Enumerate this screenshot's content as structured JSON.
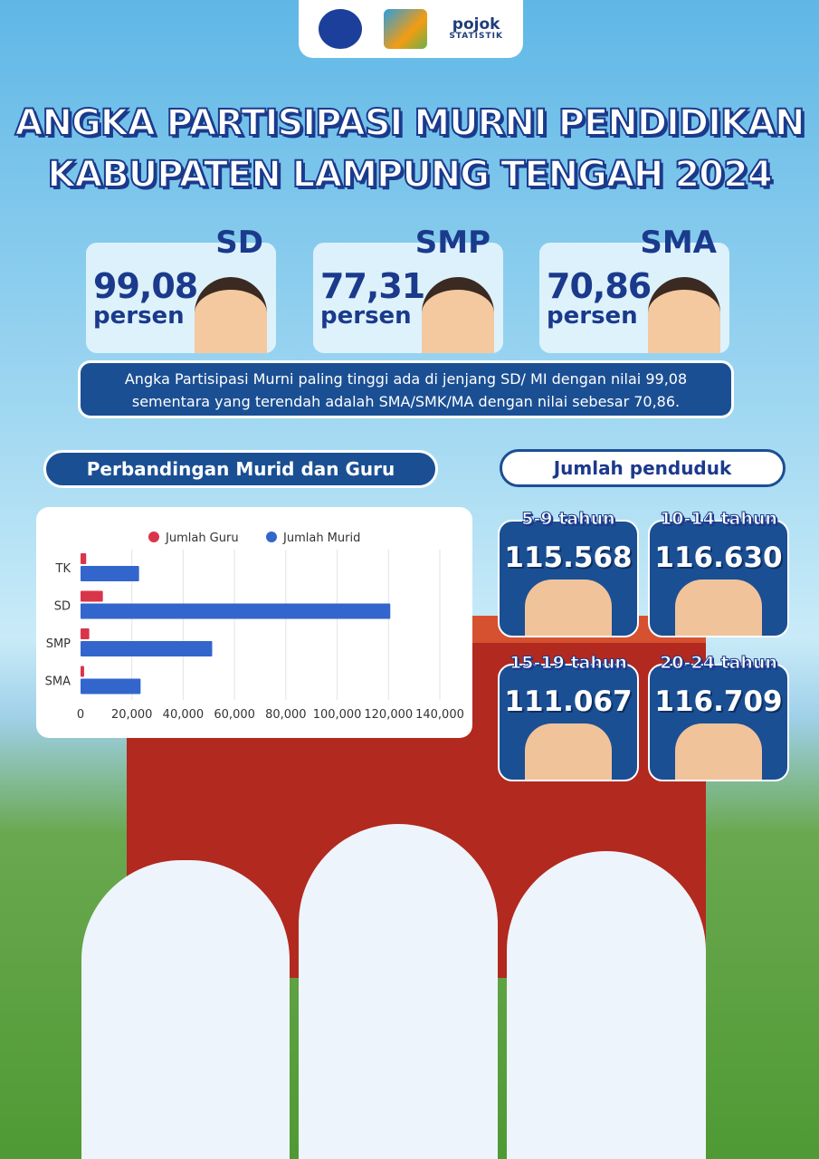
{
  "header": {
    "title_line1": "ANGKA PARTISIPASI MURNI PENDIDIKAN",
    "title_line2": "KABUPATEN LAMPUNG TENGAH 2024",
    "logos": {
      "pojok": "pojok",
      "statistik": "STATISTIK"
    }
  },
  "kpis": [
    {
      "level": "SD",
      "value": "99,08",
      "unit": "persen"
    },
    {
      "level": "SMP",
      "value": "77,31",
      "unit": "persen"
    },
    {
      "level": "SMA",
      "value": "70,86",
      "unit": "persen"
    }
  ],
  "note": {
    "line1": "Angka Partisipasi Murni paling tinggi ada di jenjang SD/ MI dengan nilai 99,08",
    "line2": "sementara yang terendah adalah SMA/SMK/MA dengan nilai sebesar 70,86."
  },
  "comparison": {
    "title": "Perbandingan Murid dan Guru"
  },
  "population": {
    "title": "Jumlah penduduk",
    "groups": [
      {
        "age": "5-9 tahun",
        "value": "115.568"
      },
      {
        "age": "10-14 tahun",
        "value": "116.630"
      },
      {
        "age": "15-19 tahun",
        "value": "111.067"
      },
      {
        "age": "20-24 tahun",
        "value": "116.709"
      }
    ]
  },
  "chart_data": {
    "type": "bar",
    "orientation": "horizontal",
    "categories": [
      "TK",
      "SD",
      "SMP",
      "SMA"
    ],
    "series": [
      {
        "name": "Jumlah Guru",
        "color": "#d9354a",
        "values": [
          2200,
          8700,
          3400,
          1400
        ]
      },
      {
        "name": "Jumlah Murid",
        "color": "#3366cc",
        "values": [
          22800,
          120700,
          51300,
          23400
        ]
      }
    ],
    "xlim": [
      0,
      140000
    ],
    "xticks": [
      "0",
      "20,000",
      "40,000",
      "60,000",
      "80,000",
      "100,000",
      "120,000",
      "140,000"
    ],
    "grid": true,
    "legend": "top"
  }
}
